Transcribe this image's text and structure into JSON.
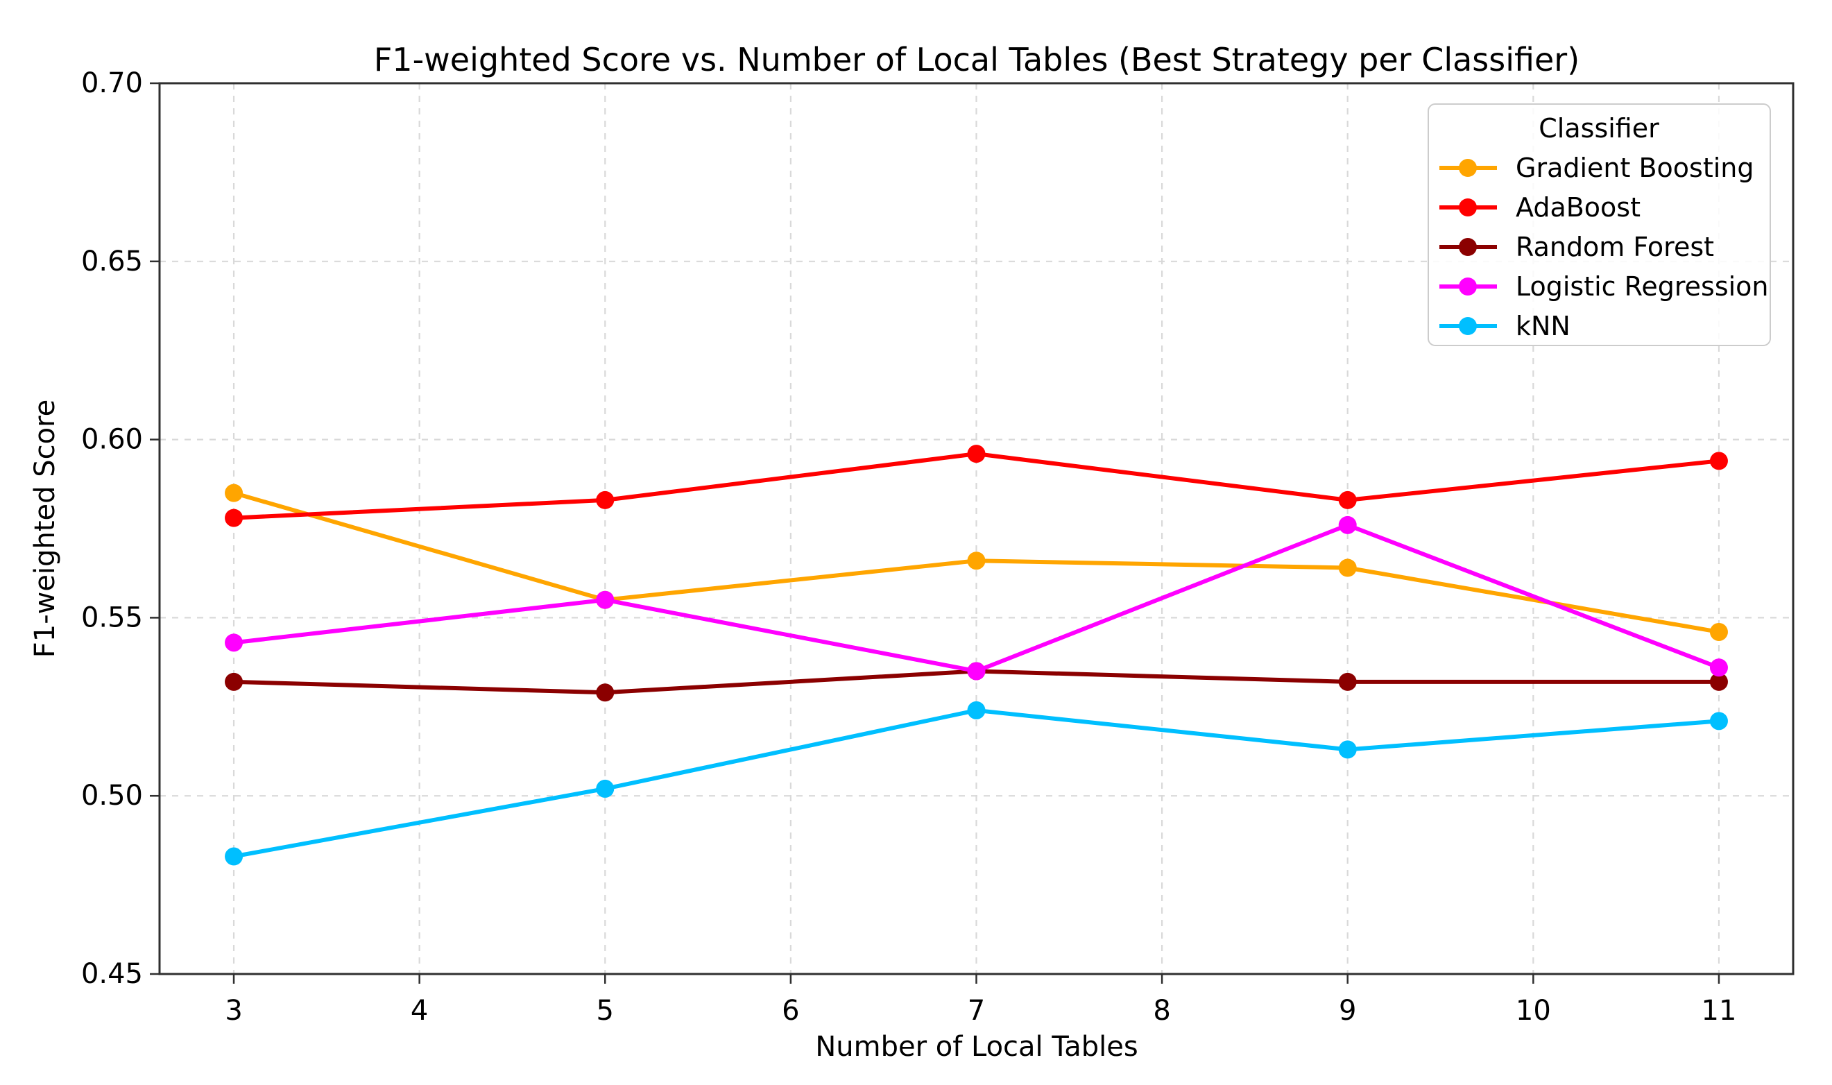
{
  "figure": {
    "title": "F1-weighted Score vs. Number of Local Tables (Best Strategy per Classifier)",
    "xlabel": "Number of Local Tables",
    "ylabel": "F1-weighted Score"
  },
  "legend": {
    "title": "Classifier",
    "entries": [
      "Gradient Boosting",
      "AdaBoost",
      "Random Forest",
      "Logistic Regression",
      "kNN"
    ]
  },
  "colors": {
    "grid": "#d9d9d9",
    "spine": "#2f2f2f",
    "text": "#000000",
    "legend_border": "#cccccc",
    "background": "#ffffff"
  },
  "chart_data": {
    "type": "line",
    "title": "F1-weighted Score vs. Number of Local Tables (Best Strategy per Classifier)",
    "xlabel": "Number of Local Tables",
    "ylabel": "F1-weighted Score",
    "x": [
      3,
      5,
      7,
      9,
      11
    ],
    "xticks": [
      3,
      4,
      5,
      6,
      7,
      8,
      9,
      10,
      11
    ],
    "yticks": [
      0.45,
      0.5,
      0.55,
      0.6,
      0.65,
      0.7
    ],
    "xlim": [
      2.6,
      11.4
    ],
    "ylim": [
      0.45,
      0.7
    ],
    "grid": true,
    "grid_style": "dashed",
    "legend_position": "upper right",
    "legend_title": "Classifier",
    "marker": "o",
    "series": [
      {
        "name": "Gradient Boosting",
        "color": "#FFA500",
        "values": [
          0.585,
          0.555,
          0.566,
          0.564,
          0.546
        ]
      },
      {
        "name": "AdaBoost",
        "color": "#FF0000",
        "values": [
          0.578,
          0.583,
          0.596,
          0.583,
          0.594
        ]
      },
      {
        "name": "Random Forest",
        "color": "#8B0000",
        "values": [
          0.532,
          0.529,
          0.535,
          0.532,
          0.532
        ]
      },
      {
        "name": "Logistic Regression",
        "color": "#FF00FF",
        "values": [
          0.543,
          0.555,
          0.535,
          0.576,
          0.536
        ]
      },
      {
        "name": "kNN",
        "color": "#00BFFF",
        "values": [
          0.483,
          0.502,
          0.524,
          0.513,
          0.521
        ]
      }
    ]
  }
}
